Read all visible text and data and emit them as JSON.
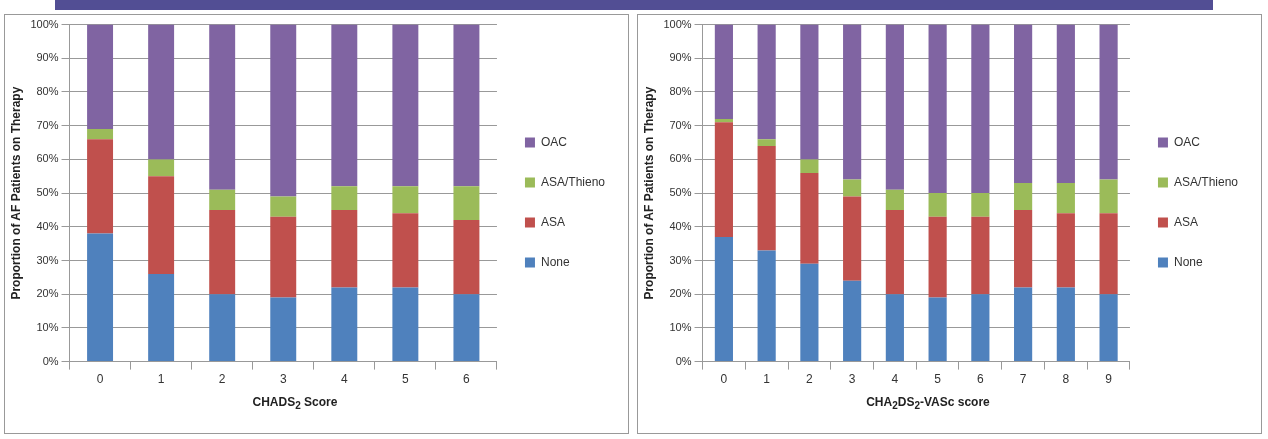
{
  "chart_data": [
    {
      "type": "bar",
      "stacked": true,
      "xlabel": "CHADS$_{2}$ Score",
      "ylabel": "Proportion of AF Patients on Therapy",
      "categories": [
        "0",
        "1",
        "2",
        "3",
        "4",
        "5",
        "6"
      ],
      "series": [
        {
          "name": "None",
          "color": "#4f81bd",
          "values": [
            38,
            26,
            20,
            19,
            22,
            22,
            20
          ]
        },
        {
          "name": "ASA",
          "color": "#c0504d",
          "values": [
            28,
            29,
            25,
            24,
            23,
            22,
            22
          ]
        },
        {
          "name": "ASA/Thieno",
          "color": "#9bbb59",
          "values": [
            3,
            5,
            6,
            6,
            7,
            8,
            10
          ]
        },
        {
          "name": "OAC",
          "color": "#8064a2",
          "values": [
            31,
            40,
            49,
            51,
            48,
            48,
            48
          ]
        }
      ],
      "ylim": [
        0,
        100
      ],
      "yticks": [
        {
          "value": 0,
          "label": "0%"
        },
        {
          "value": 10,
          "label": "10%"
        },
        {
          "value": 20,
          "label": "20%"
        },
        {
          "value": 30,
          "label": "30%"
        },
        {
          "value": 40,
          "label": "40%"
        },
        {
          "value": 50,
          "label": "50%"
        },
        {
          "value": 60,
          "label": "60%"
        },
        {
          "value": 70,
          "label": "70%"
        },
        {
          "value": 80,
          "label": "80%"
        },
        {
          "value": 90,
          "label": "90%"
        },
        {
          "value": 100,
          "label": "100%"
        }
      ],
      "grid": "y",
      "legend": "right"
    },
    {
      "type": "bar",
      "stacked": true,
      "xlabel": "CHA$_{2}$DS$_{2}$-VASc score",
      "ylabel": "Proportion of AF Patients on Therapy",
      "categories": [
        "0",
        "1",
        "2",
        "3",
        "4",
        "5",
        "6",
        "7",
        "8",
        "9"
      ],
      "series": [
        {
          "name": "None",
          "color": "#4f81bd",
          "values": [
            37,
            33,
            29,
            24,
            20,
            19,
            20,
            22,
            22,
            20
          ]
        },
        {
          "name": "ASA",
          "color": "#c0504d",
          "values": [
            34,
            31,
            27,
            25,
            25,
            24,
            23,
            23,
            22,
            24
          ]
        },
        {
          "name": "ASA/Thieno",
          "color": "#9bbb59",
          "values": [
            1,
            2,
            4,
            5,
            6,
            7,
            7,
            8,
            9,
            10
          ]
        },
        {
          "name": "OAC",
          "color": "#8064a2",
          "values": [
            28,
            34,
            40,
            46,
            49,
            50,
            50,
            47,
            47,
            46
          ]
        }
      ],
      "ylim": [
        0,
        100
      ],
      "yticks": [
        {
          "value": 0,
          "label": "0%"
        },
        {
          "value": 10,
          "label": "10%"
        },
        {
          "value": 20,
          "label": "20%"
        },
        {
          "value": 30,
          "label": "30%"
        },
        {
          "value": 40,
          "label": "40%"
        },
        {
          "value": 50,
          "label": "50%"
        },
        {
          "value": 60,
          "label": "60%"
        },
        {
          "value": 70,
          "label": "70%"
        },
        {
          "value": 80,
          "label": "80%"
        },
        {
          "value": 90,
          "label": "90%"
        },
        {
          "value": 100,
          "label": "100%"
        }
      ],
      "grid": "y",
      "legend": "right"
    }
  ]
}
